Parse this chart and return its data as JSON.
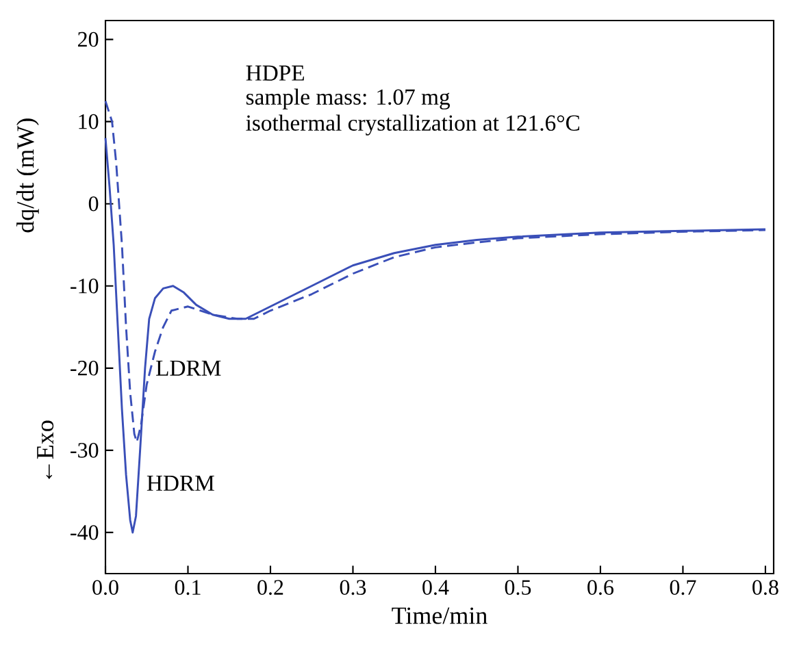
{
  "chart_data": {
    "type": "line",
    "xlabel": "Time/min",
    "ylabel": "dq/dt (mW)",
    "annotations": [
      "HDPE",
      "sample mass: 1.07 mg",
      "isothermal crystallization at 121.6°C",
      "←Exo"
    ],
    "xlim": [
      0,
      0.81
    ],
    "ylim": [
      -45,
      22.3
    ],
    "xticks": [
      {
        "value": 0,
        "label": "0.0"
      },
      0.1,
      0.2,
      0.3,
      0.4,
      0.5,
      0.6,
      0.7,
      0.8
    ],
    "yticks": [
      -40,
      -30,
      -20,
      -10,
      0,
      10,
      20
    ],
    "grid": false,
    "legend": false,
    "marker": "none",
    "series": [
      {
        "name": "HDRM",
        "color": "#3a4fb8",
        "line_style": "solid",
        "x": [
          0.0,
          0.005,
          0.01,
          0.015,
          0.02,
          0.025,
          0.03,
          0.033,
          0.037,
          0.042,
          0.048,
          0.053,
          0.06,
          0.07,
          0.082,
          0.095,
          0.11,
          0.13,
          0.15,
          0.17,
          0.2,
          0.25,
          0.3,
          0.35,
          0.4,
          0.45,
          0.5,
          0.6,
          0.7,
          0.8
        ],
        "values": [
          8,
          2,
          -5,
          -15,
          -25,
          -33,
          -38.5,
          -40,
          -38,
          -30,
          -20,
          -14,
          -11.5,
          -10.3,
          -10,
          -10.8,
          -12.3,
          -13.5,
          -14,
          -14,
          -12.5,
          -10,
          -7.5,
          -6,
          -5,
          -4.4,
          -4,
          -3.5,
          -3.3,
          -3.1
        ]
      },
      {
        "name": "LDRM",
        "color": "#3a4fb8",
        "line_style": "dashed",
        "x": [
          0.0,
          0.008,
          0.013,
          0.02,
          0.025,
          0.03,
          0.035,
          0.038,
          0.043,
          0.05,
          0.06,
          0.07,
          0.08,
          0.1,
          0.13,
          0.16,
          0.18,
          0.2,
          0.25,
          0.3,
          0.35,
          0.4,
          0.45,
          0.5,
          0.6,
          0.7,
          0.8
        ],
        "values": [
          12.5,
          10,
          5,
          -5,
          -15,
          -23,
          -28,
          -29,
          -27,
          -22,
          -18,
          -15,
          -13,
          -12.5,
          -13.5,
          -14,
          -14,
          -13,
          -11,
          -8.5,
          -6.5,
          -5.3,
          -4.7,
          -4.2,
          -3.7,
          -3.4,
          -3.2
        ]
      }
    ]
  }
}
